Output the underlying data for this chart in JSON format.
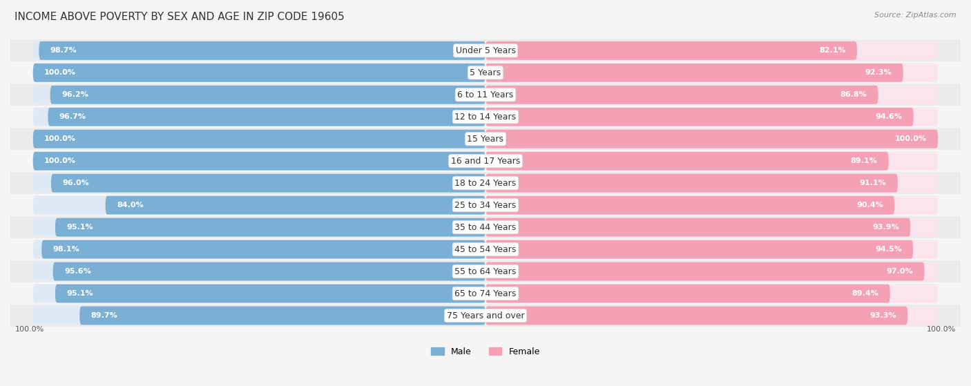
{
  "title": "INCOME ABOVE POVERTY BY SEX AND AGE IN ZIP CODE 19605",
  "source": "Source: ZipAtlas.com",
  "categories": [
    "Under 5 Years",
    "5 Years",
    "6 to 11 Years",
    "12 to 14 Years",
    "15 Years",
    "16 and 17 Years",
    "18 to 24 Years",
    "25 to 34 Years",
    "35 to 44 Years",
    "45 to 54 Years",
    "55 to 64 Years",
    "65 to 74 Years",
    "75 Years and over"
  ],
  "male_values": [
    98.7,
    100.0,
    96.2,
    96.7,
    100.0,
    100.0,
    96.0,
    84.0,
    95.1,
    98.1,
    95.6,
    95.1,
    89.7
  ],
  "female_values": [
    82.1,
    92.3,
    86.8,
    94.6,
    100.0,
    89.1,
    91.1,
    90.4,
    93.9,
    94.5,
    97.0,
    89.4,
    93.3
  ],
  "male_color": "#7bafd4",
  "female_color": "#f4a0b5",
  "male_track_color": "#ddeaf5",
  "female_track_color": "#fce4ec",
  "male_label": "Male",
  "female_label": "Female",
  "bg_color": "#f5f5f5",
  "row_color_odd": "#f5f5f5",
  "row_color_even": "#ebebeb",
  "title_fontsize": 11,
  "source_fontsize": 8,
  "label_fontsize": 8,
  "category_fontsize": 9,
  "value_fontsize": 8
}
